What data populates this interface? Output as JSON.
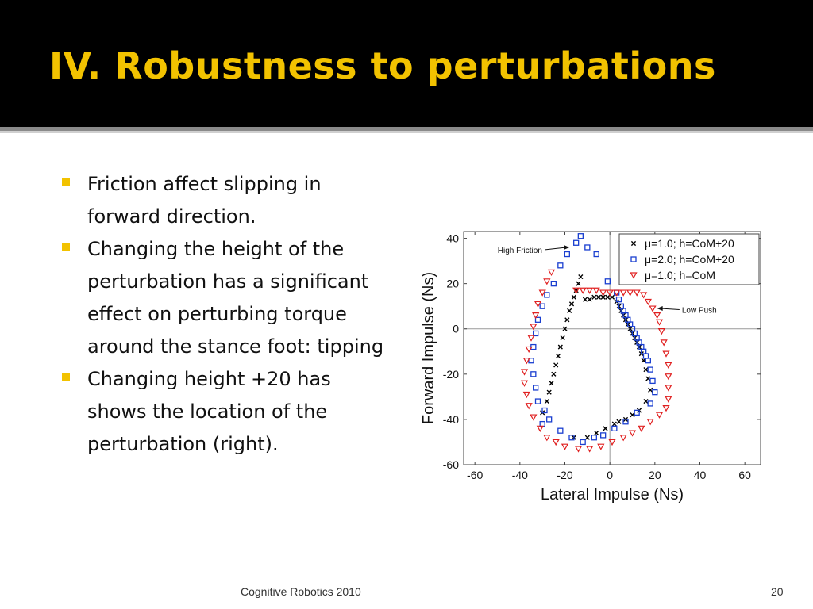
{
  "slide": {
    "title": "IV. Robustness to perturbations",
    "bullets": [
      "Friction affect slipping in forward direction.",
      "Changing the height of the perturbation has a significant effect on perturbing torque around the stance foot: tipping",
      "Changing height +20 has shows the location of the perturbation (right)."
    ],
    "footer": "Cognitive Robotics 2010",
    "page_number": "20"
  },
  "colors": {
    "title": "#f2c200",
    "bullet_marker": "#f2c200",
    "series_mu1_high": "#000000",
    "series_mu2_high": "#1a3fd0",
    "series_mu1_com": "#e02020"
  },
  "chart_data": {
    "type": "scatter",
    "xlabel": "Lateral Impulse (Ns)",
    "ylabel": "Forward Impulse (Ns)",
    "xlim": [
      -65,
      67
    ],
    "ylim": [
      -60,
      43
    ],
    "xticks": [
      -60,
      -40,
      -20,
      0,
      20,
      40,
      60
    ],
    "yticks": [
      -60,
      -40,
      -20,
      0,
      20,
      40
    ],
    "grid": false,
    "zero_lines": true,
    "legend": "top-right",
    "annotations": [
      {
        "text": "High Friction",
        "points_to": [
          -18,
          36
        ],
        "text_at": [
          -40,
          35
        ],
        "side": "left"
      },
      {
        "text": "Low Push",
        "points_to": [
          21,
          9
        ],
        "text_at": [
          32,
          8.5
        ],
        "side": "right"
      }
    ],
    "series": [
      {
        "name": "μ=1.0; h=CoM+20",
        "marker": "x",
        "points": [
          [
            -30,
            -37
          ],
          [
            -28,
            -32
          ],
          [
            -27,
            -28
          ],
          [
            -26,
            -24
          ],
          [
            -25,
            -20
          ],
          [
            -24,
            -16
          ],
          [
            -23,
            -12
          ],
          [
            -22,
            -8
          ],
          [
            -21,
            -4
          ],
          [
            -20,
            0
          ],
          [
            -19,
            4
          ],
          [
            -18,
            8
          ],
          [
            -17,
            11
          ],
          [
            -16,
            14
          ],
          [
            -15,
            17
          ],
          [
            -14,
            20
          ],
          [
            -13,
            23
          ],
          [
            -11,
            13
          ],
          [
            -9,
            13
          ],
          [
            -7,
            14
          ],
          [
            -5,
            14
          ],
          [
            -3,
            14
          ],
          [
            -1,
            14
          ],
          [
            1,
            14
          ],
          [
            3,
            12
          ],
          [
            4,
            10
          ],
          [
            5,
            8
          ],
          [
            6,
            6
          ],
          [
            7,
            4
          ],
          [
            8,
            2
          ],
          [
            9,
            0
          ],
          [
            10,
            -2
          ],
          [
            11,
            -4
          ],
          [
            12,
            -6
          ],
          [
            13,
            -8
          ],
          [
            14,
            -11
          ],
          [
            15,
            -14
          ],
          [
            16,
            -18
          ],
          [
            17,
            -22
          ],
          [
            18,
            -27
          ],
          [
            16,
            -32
          ],
          [
            13,
            -36
          ],
          [
            10,
            -38
          ],
          [
            7,
            -40
          ],
          [
            4,
            -41
          ],
          [
            2,
            -42
          ],
          [
            -2,
            -44
          ],
          [
            -6,
            -46
          ],
          [
            -10,
            -48
          ],
          [
            -16,
            -48
          ]
        ]
      },
      {
        "name": "μ=2.0; h=CoM+20",
        "marker": "square",
        "points": [
          [
            -30,
            -42
          ],
          [
            -32,
            -32
          ],
          [
            -33,
            -26
          ],
          [
            -34,
            -20
          ],
          [
            -35,
            -14
          ],
          [
            -34,
            -8
          ],
          [
            -33,
            -2
          ],
          [
            -32,
            4
          ],
          [
            -30,
            10
          ],
          [
            -28,
            15
          ],
          [
            -25,
            20
          ],
          [
            -22,
            28
          ],
          [
            -19,
            33
          ],
          [
            -15,
            38
          ],
          [
            -13,
            41
          ],
          [
            -10,
            36
          ],
          [
            -6,
            33
          ],
          [
            -1,
            21
          ],
          [
            3,
            16
          ],
          [
            4,
            13
          ],
          [
            5,
            10
          ],
          [
            6,
            8
          ],
          [
            7,
            6
          ],
          [
            8,
            4
          ],
          [
            9,
            2
          ],
          [
            10,
            0
          ],
          [
            11,
            -2
          ],
          [
            12,
            -4
          ],
          [
            13,
            -6
          ],
          [
            14,
            -8
          ],
          [
            15,
            -10
          ],
          [
            16,
            -12
          ],
          [
            17,
            -14
          ],
          [
            18,
            -18
          ],
          [
            19,
            -23
          ],
          [
            20,
            -28
          ],
          [
            18,
            -33
          ],
          [
            12,
            -37
          ],
          [
            7,
            -41
          ],
          [
            2,
            -44
          ],
          [
            -3,
            -47
          ],
          [
            -7,
            -48
          ],
          [
            -12,
            -50
          ],
          [
            -17,
            -48
          ],
          [
            -22,
            -45
          ],
          [
            -27,
            -40
          ],
          [
            -29,
            -36
          ]
        ]
      },
      {
        "name": "μ=1.0; h=CoM",
        "marker": "triangle-down",
        "points": [
          [
            -28,
            -48
          ],
          [
            -31,
            -44
          ],
          [
            -34,
            -39
          ],
          [
            -36,
            -34
          ],
          [
            -37,
            -29
          ],
          [
            -38,
            -24
          ],
          [
            -38,
            -19
          ],
          [
            -37,
            -14
          ],
          [
            -36,
            -9
          ],
          [
            -35,
            -4
          ],
          [
            -34,
            1
          ],
          [
            -33,
            6
          ],
          [
            -32,
            11
          ],
          [
            -30,
            16
          ],
          [
            -28,
            21
          ],
          [
            -26,
            25
          ],
          [
            -15,
            17
          ],
          [
            -12,
            17
          ],
          [
            -9,
            17
          ],
          [
            -6,
            17
          ],
          [
            -3,
            16
          ],
          [
            0,
            16
          ],
          [
            3,
            16
          ],
          [
            6,
            16
          ],
          [
            9,
            16
          ],
          [
            12,
            16
          ],
          [
            15,
            15
          ],
          [
            17,
            12
          ],
          [
            19,
            9
          ],
          [
            21,
            6
          ],
          [
            22,
            3
          ],
          [
            23,
            -1
          ],
          [
            24,
            -6
          ],
          [
            25,
            -11
          ],
          [
            26,
            -16
          ],
          [
            26,
            -21
          ],
          [
            26,
            -26
          ],
          [
            26,
            -31
          ],
          [
            25,
            -35
          ],
          [
            22,
            -38
          ],
          [
            18,
            -41
          ],
          [
            14,
            -44
          ],
          [
            10,
            -46
          ],
          [
            6,
            -48
          ],
          [
            1,
            -50
          ],
          [
            -4,
            -52
          ],
          [
            -9,
            -53
          ],
          [
            -14,
            -53
          ],
          [
            -20,
            -52
          ],
          [
            -24,
            -50
          ]
        ]
      }
    ]
  }
}
